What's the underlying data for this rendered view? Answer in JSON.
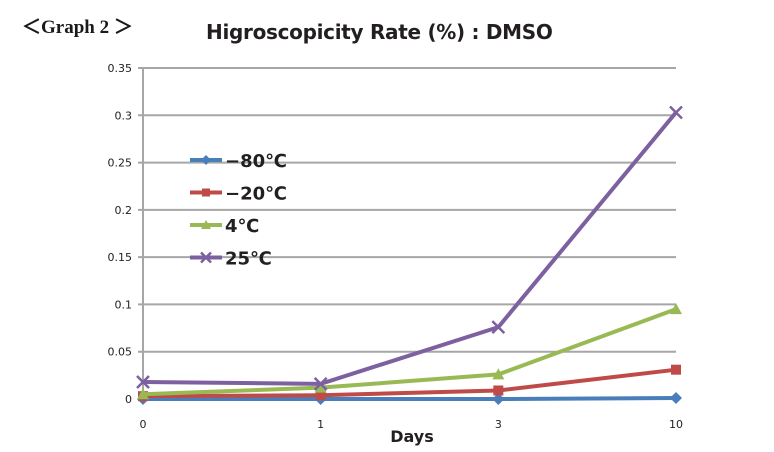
{
  "header": {
    "graph_label": "＜Graph 2 ＞"
  },
  "chart_data": {
    "type": "line",
    "title": "Higroscopicity Rate (%) : DMSO",
    "xlabel": "Days",
    "ylabel": "",
    "categories": [
      "0",
      "1",
      "3",
      "10"
    ],
    "ylim": [
      0,
      0.35
    ],
    "yticks": [
      "0",
      "0.05",
      "0.1",
      "0.15",
      "0.2",
      "0.25",
      "0.3",
      "0.35"
    ],
    "ytick_values": [
      0,
      0.05,
      0.1,
      0.15,
      0.2,
      0.25,
      0.3,
      0.35
    ],
    "grid": true,
    "legend_position": "upper-left inside",
    "series": [
      {
        "name": "−80℃",
        "color": "#4a7ebb",
        "marker": "diamond",
        "values": [
          0.0,
          0.0,
          0.0,
          0.001
        ]
      },
      {
        "name": "−20℃",
        "color": "#be4b48",
        "marker": "square",
        "values": [
          0.003,
          0.004,
          0.009,
          0.031
        ]
      },
      {
        "name": "4℃",
        "color": "#98b954",
        "marker": "triangle",
        "values": [
          0.005,
          0.012,
          0.026,
          0.095
        ]
      },
      {
        "name": "25℃",
        "color": "#7d60a0",
        "marker": "x",
        "values": [
          0.018,
          0.016,
          0.076,
          0.303
        ]
      }
    ]
  }
}
